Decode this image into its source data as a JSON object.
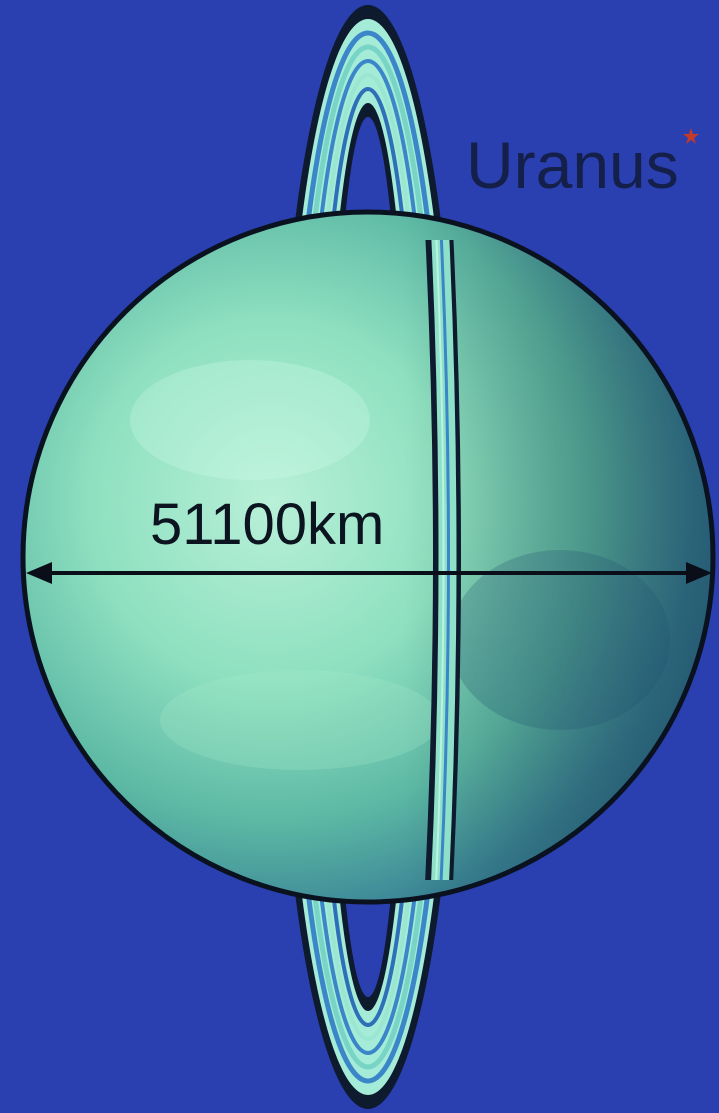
{
  "planet": {
    "name": "Uranus"
  },
  "measurement": {
    "diameter_label": "51100km"
  },
  "colors": {
    "background": "#2a3fb0",
    "planet_light": "#8ee0c0",
    "planet_dark": "#2a6a82",
    "ring_outline": "#0e1a2e",
    "ring_light": "#a4ecd8",
    "ring_band": "#3a86c8",
    "star_marker": "#c23a2a",
    "label_text": "#14204a"
  }
}
